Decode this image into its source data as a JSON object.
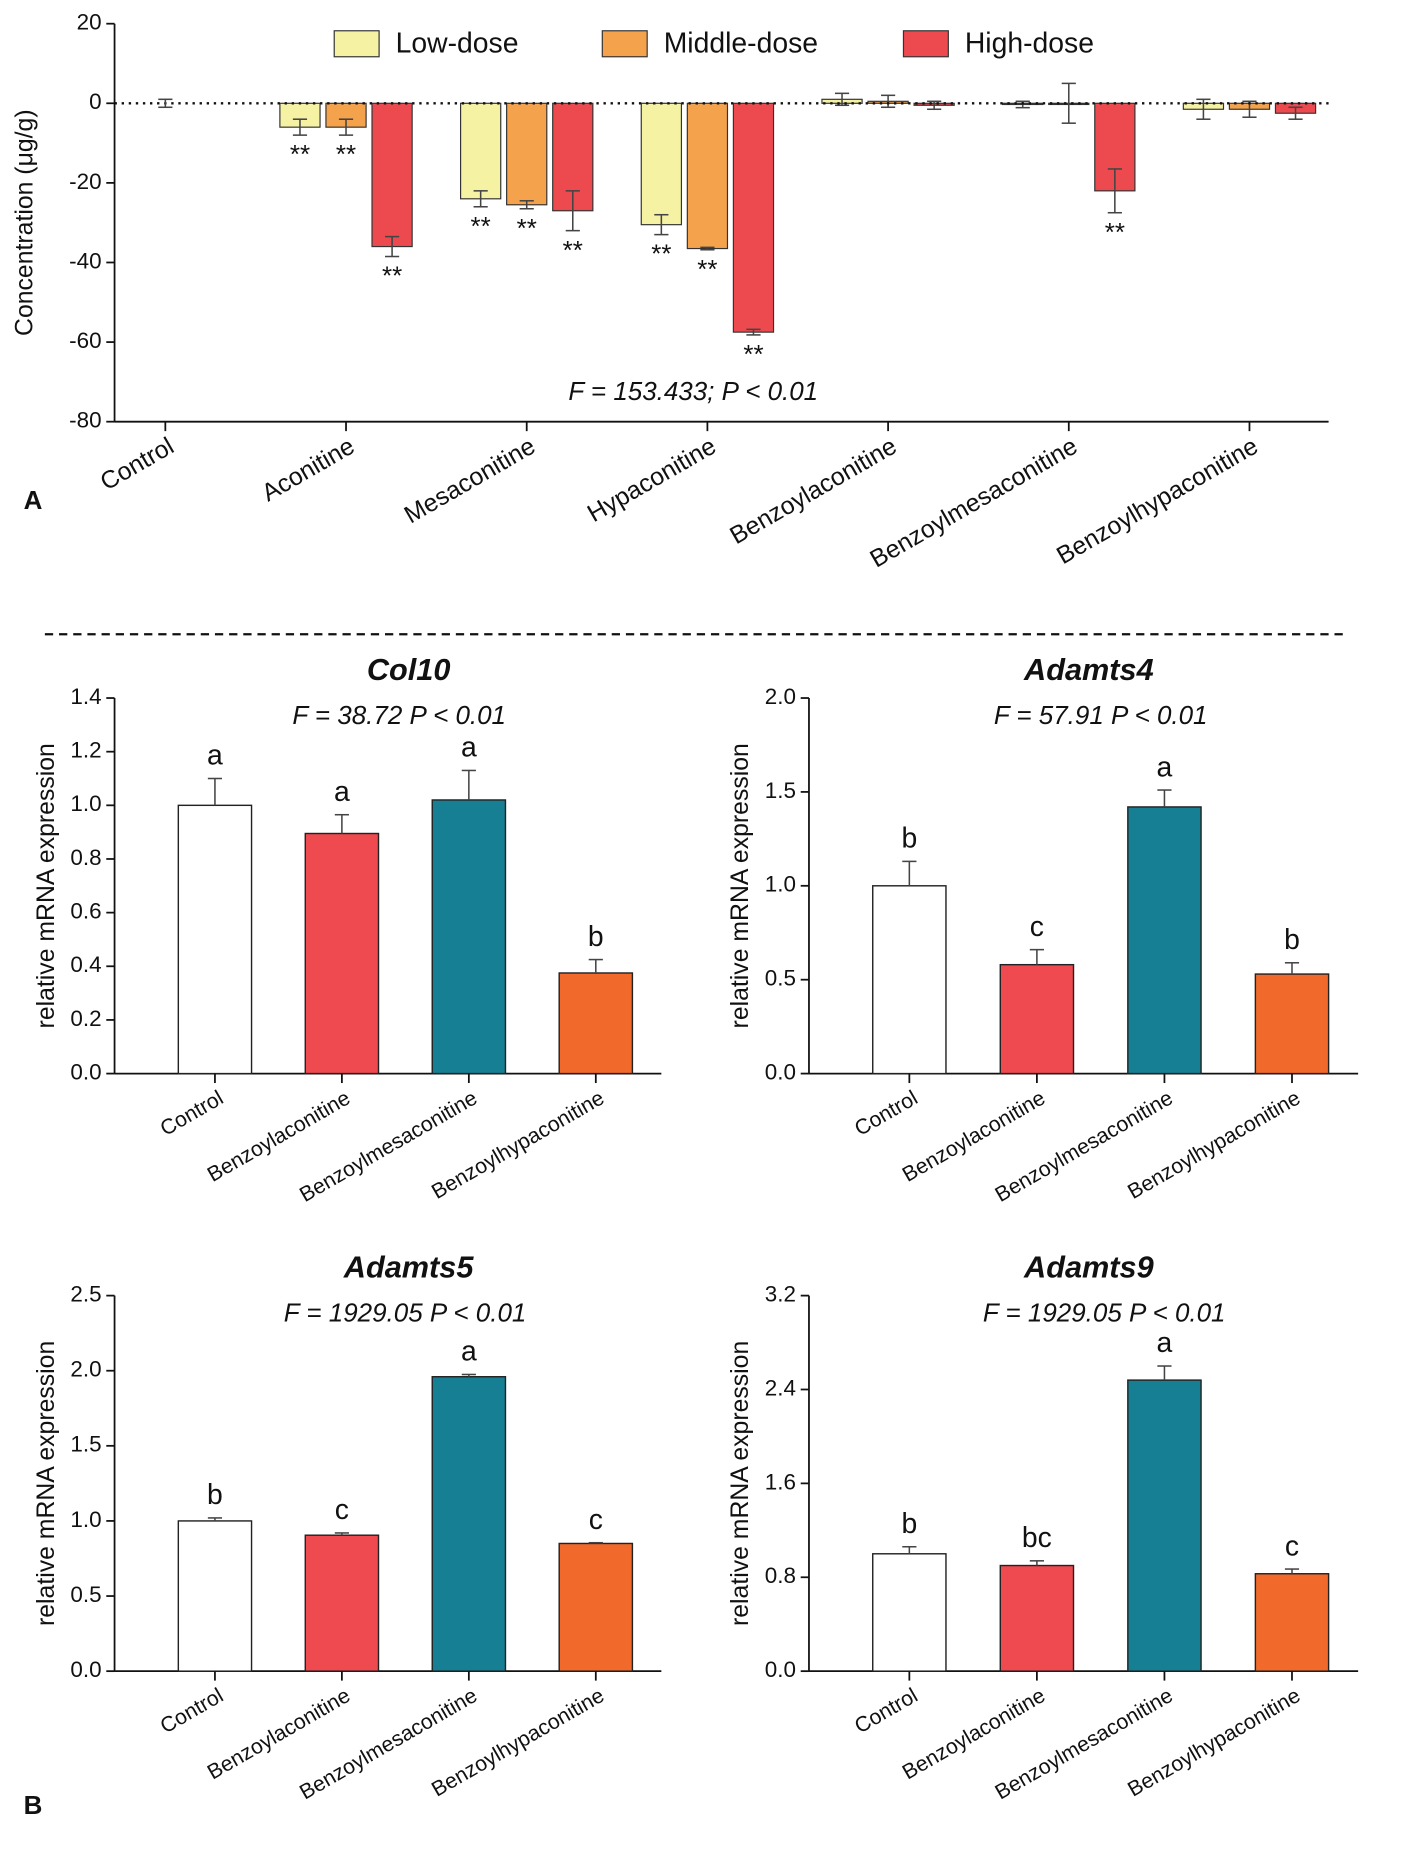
{
  "panel_labels": [
    "A",
    "B"
  ],
  "chart_data": [
    {
      "type": "bar",
      "ylabel": "Concentration (μg/g)",
      "stat": "F = 153.433; P < 0.01",
      "categories": [
        "Control",
        "Aconitine",
        "Mesaconitine",
        "Hypaconitine",
        "Benzoylaconitine",
        "Benzoylmesaconitine",
        "Benzoylhypaconitine"
      ],
      "control_value": 0,
      "control_error": 1,
      "series": [
        {
          "name": "Low-dose",
          "color": "#f6f2a4",
          "values": [
            null,
            -6,
            -24,
            -30.5,
            1,
            -0.3,
            -1.5
          ],
          "errors": [
            null,
            2,
            2,
            2.5,
            1.5,
            0.8,
            2.5
          ],
          "significance": [
            null,
            "**",
            "**",
            "**",
            null,
            null,
            null
          ]
        },
        {
          "name": "Middle-dose",
          "color": "#f5a24c",
          "values": [
            null,
            -6,
            -25.5,
            -36.5,
            0.5,
            0,
            -1.5
          ],
          "errors": [
            null,
            2,
            1,
            0.3,
            1.5,
            5,
            2
          ],
          "significance": [
            null,
            "**",
            "**",
            "**",
            null,
            null,
            null
          ]
        },
        {
          "name": "High-dose",
          "color": "#ec4a4f",
          "values": [
            null,
            -36,
            -27,
            -57.5,
            -0.5,
            -22,
            -2.5
          ],
          "errors": [
            null,
            2.5,
            5,
            0.7,
            1,
            5.5,
            1.5
          ],
          "significance": [
            null,
            "**",
            "**",
            "**",
            null,
            "**",
            null
          ]
        }
      ],
      "ylim": [
        -80,
        20
      ],
      "yticks": [
        20,
        0,
        -20,
        -40,
        -60,
        -80
      ]
    },
    {
      "type": "bar",
      "title": "Col10",
      "stat": "F = 38.72   P < 0.01",
      "ylabel": "relative mRNA expression",
      "categories": [
        "Control",
        "Benzoylaconitine",
        "Benzoylmesaconitine",
        "Benzoylhypaconitine"
      ],
      "colors": [
        "#ffffff",
        "#ee4a50",
        "#167f93",
        "#f26a2b"
      ],
      "values": [
        1.0,
        0.895,
        1.02,
        0.375
      ],
      "errors": [
        0.1,
        0.07,
        0.11,
        0.05
      ],
      "letters": [
        "a",
        "a",
        "a",
        "b"
      ],
      "ylim": [
        0,
        1.4
      ],
      "yticks": [
        {
          "value": 0,
          "label": "0.0"
        },
        0.2,
        0.4,
        0.6,
        0.8,
        {
          "value": 1,
          "label": "1.0"
        },
        1.2,
        1.4
      ]
    },
    {
      "type": "bar",
      "title": "Adamts4",
      "stat": "F = 57.91   P < 0.01",
      "ylabel": "relative mRNA expression",
      "categories": [
        "Control",
        "Benzoylaconitine",
        "Benzoylmesaconitine",
        "Benzoylhypaconitine"
      ],
      "colors": [
        "#ffffff",
        "#ee4a50",
        "#167f93",
        "#f26a2b"
      ],
      "values": [
        1.0,
        0.58,
        1.42,
        0.53
      ],
      "errors": [
        0.13,
        0.08,
        0.09,
        0.06
      ],
      "letters": [
        "b",
        "c",
        "a",
        "b"
      ],
      "ylim": [
        0,
        2
      ],
      "yticks": [
        {
          "value": 0,
          "label": "0.0"
        },
        0.5,
        {
          "value": 1,
          "label": "1.0"
        },
        1.5,
        {
          "value": 2,
          "label": "2.0"
        }
      ]
    },
    {
      "type": "bar",
      "title": "Adamts5",
      "stat": "F = 1929.05   P < 0.01",
      "ylabel": "relative mRNA expression",
      "categories": [
        "Control",
        "Benzoylaconitine",
        "Benzoylmesaconitine",
        "Benzoylhypaconitine"
      ],
      "colors": [
        "#ffffff",
        "#ee4a50",
        "#167f93",
        "#f26a2b"
      ],
      "values": [
        1.0,
        0.905,
        1.96,
        0.85
      ],
      "errors": [
        0.02,
        0.015,
        0.015,
        0.005
      ],
      "letters": [
        "b",
        "c",
        "a",
        "c"
      ],
      "ylim": [
        0,
        2.5
      ],
      "yticks": [
        {
          "value": 0,
          "label": "0.0"
        },
        0.5,
        {
          "value": 1,
          "label": "1.0"
        },
        1.5,
        {
          "value": 2,
          "label": "2.0"
        },
        2.5
      ]
    },
    {
      "type": "bar",
      "title": "Adamts9",
      "stat": "F = 1929.05   P < 0.01",
      "ylabel": "relative mRNA expression",
      "categories": [
        "Control",
        "Benzoylaconitine",
        "Benzoylmesaconitine",
        "Benzoylhypaconitine"
      ],
      "colors": [
        "#ffffff",
        "#ee4a50",
        "#167f93",
        "#f26a2b"
      ],
      "values": [
        1.0,
        0.9,
        2.48,
        0.83
      ],
      "errors": [
        0.06,
        0.04,
        0.12,
        0.04
      ],
      "letters": [
        "b",
        "bc",
        "a",
        "c"
      ],
      "ylim": [
        0,
        3.2
      ],
      "yticks": [
        {
          "value": 0,
          "label": "0.0"
        },
        0.8,
        1.6,
        2.4,
        3.2
      ]
    }
  ]
}
